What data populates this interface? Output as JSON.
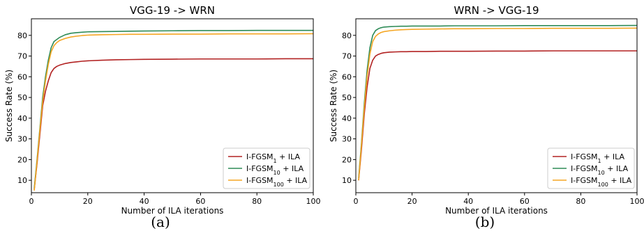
{
  "chart_data": [
    {
      "type": "line",
      "title": "VGG-19 -> WRN",
      "xlabel": "Number of ILA iterations",
      "ylabel": "Success Rate (%)",
      "xlim": [
        0,
        100
      ],
      "ylim": [
        4,
        88
      ],
      "xticks": [
        0,
        20,
        40,
        60,
        80,
        100
      ],
      "yticks": [
        10,
        20,
        30,
        40,
        50,
        60,
        70,
        80
      ],
      "legend_position": "lower-right",
      "caption": "(a)",
      "series": [
        {
          "name": "I-FGSM",
          "sub": "1",
          "suffix": " + ILA",
          "color": "#b22222",
          "x": [
            1,
            2,
            3,
            4,
            5,
            6,
            7,
            8,
            9,
            10,
            12,
            14,
            16,
            18,
            20,
            25,
            30,
            35,
            40,
            50,
            60,
            70,
            80,
            90,
            100
          ],
          "y": [
            5.5,
            18,
            32,
            46,
            53,
            58,
            62,
            64,
            65,
            65.6,
            66.4,
            66.9,
            67.2,
            67.5,
            67.7,
            68,
            68.2,
            68.3,
            68.4,
            68.5,
            68.6,
            68.6,
            68.6,
            68.7,
            68.7
          ]
        },
        {
          "name": "I-FGSM",
          "sub": "10",
          "suffix": " + ILA",
          "color": "#2e8b57",
          "x": [
            1,
            2,
            3,
            4,
            5,
            6,
            7,
            8,
            9,
            10,
            12,
            14,
            16,
            18,
            20,
            25,
            30,
            35,
            40,
            50,
            60,
            70,
            80,
            90,
            100
          ],
          "y": [
            6,
            20,
            35,
            50,
            60,
            68,
            74,
            77,
            78,
            79,
            80.3,
            81,
            81.3,
            81.5,
            81.7,
            81.8,
            81.9,
            82,
            82.1,
            82.2,
            82.3,
            82.3,
            82.4,
            82.4,
            82.4
          ]
        },
        {
          "name": "I-FGSM",
          "sub": "100",
          "suffix": " + ILA",
          "color": "#f5a623",
          "x": [
            1,
            2,
            3,
            4,
            5,
            6,
            7,
            8,
            9,
            10,
            12,
            14,
            16,
            18,
            20,
            25,
            30,
            35,
            40,
            50,
            60,
            70,
            80,
            90,
            100
          ],
          "y": [
            5,
            19,
            34,
            48,
            58,
            66,
            72,
            75,
            76.5,
            77.5,
            78.5,
            79.2,
            79.6,
            79.9,
            80.1,
            80.3,
            80.4,
            80.5,
            80.5,
            80.6,
            80.6,
            80.7,
            80.7,
            80.7,
            80.8
          ]
        }
      ]
    },
    {
      "type": "line",
      "title": "WRN -> VGG-19",
      "xlabel": "Number of ILA iterations",
      "ylabel": "Success Rate (%)",
      "xlim": [
        0,
        100
      ],
      "ylim": [
        4,
        88
      ],
      "xticks": [
        0,
        20,
        40,
        60,
        80,
        100
      ],
      "yticks": [
        10,
        20,
        30,
        40,
        50,
        60,
        70,
        80
      ],
      "legend_position": "lower-right",
      "caption": "(b)",
      "series": [
        {
          "name": "I-FGSM",
          "sub": "1",
          "suffix": " + ILA",
          "color": "#b22222",
          "x": [
            1,
            2,
            3,
            4,
            5,
            6,
            7,
            8,
            9,
            10,
            12,
            14,
            16,
            18,
            20,
            25,
            30,
            35,
            40,
            50,
            60,
            70,
            80,
            90,
            100
          ],
          "y": [
            10,
            25,
            42,
            55,
            64,
            68,
            70,
            70.8,
            71.3,
            71.6,
            71.9,
            72,
            72.1,
            72.1,
            72.2,
            72.2,
            72.3,
            72.3,
            72.3,
            72.4,
            72.4,
            72.5,
            72.5,
            72.5,
            72.5
          ]
        },
        {
          "name": "I-FGSM",
          "sub": "10",
          "suffix": " + ILA",
          "color": "#2e8b57",
          "x": [
            1,
            2,
            3,
            4,
            5,
            6,
            7,
            8,
            9,
            10,
            12,
            14,
            16,
            18,
            20,
            25,
            30,
            35,
            40,
            50,
            60,
            70,
            80,
            90,
            100
          ],
          "y": [
            11,
            28,
            47,
            63,
            74,
            80,
            82.3,
            83.2,
            83.7,
            84,
            84.2,
            84.3,
            84.4,
            84.4,
            84.5,
            84.5,
            84.5,
            84.6,
            84.6,
            84.6,
            84.7,
            84.7,
            84.7,
            84.7,
            84.8
          ]
        },
        {
          "name": "I-FGSM",
          "sub": "100",
          "suffix": " + ILA",
          "color": "#f5a623",
          "x": [
            1,
            2,
            3,
            4,
            5,
            6,
            7,
            8,
            9,
            10,
            12,
            14,
            16,
            18,
            20,
            25,
            30,
            35,
            40,
            50,
            60,
            70,
            80,
            90,
            100
          ],
          "y": [
            10,
            27,
            45,
            60,
            71,
            77,
            79.5,
            80.7,
            81.4,
            81.8,
            82.2,
            82.5,
            82.7,
            82.8,
            82.9,
            83,
            83.1,
            83.2,
            83.2,
            83.3,
            83.3,
            83.4,
            83.4,
            83.4,
            83.5
          ]
        }
      ]
    }
  ]
}
